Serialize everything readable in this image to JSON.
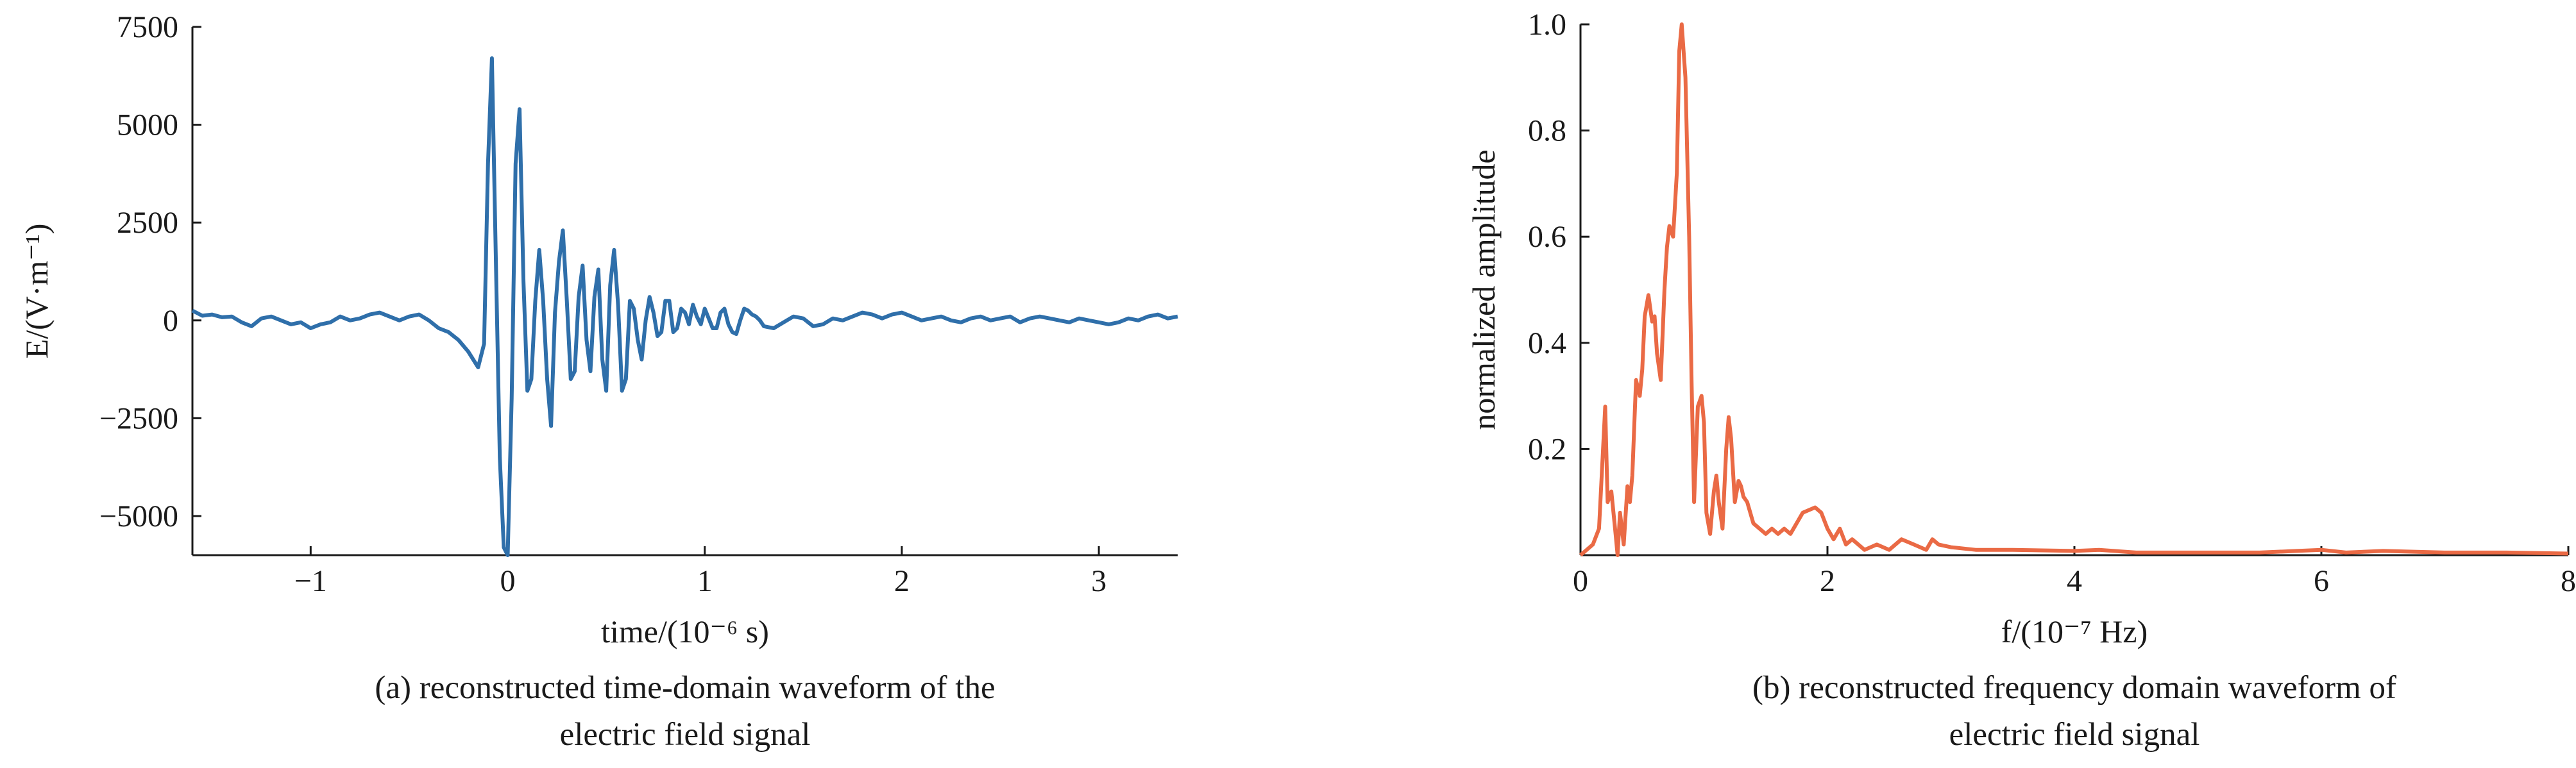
{
  "chart_data": [
    {
      "type": "line",
      "caption": [
        "(a) reconstructed time-domain waveform of the",
        "electric field signal"
      ],
      "xlabel": "time/(10⁻⁶ s)",
      "ylabel": "E/(V·m⁻¹)",
      "xlim": [
        -1.6,
        3.4
      ],
      "ylim": [
        -6000,
        7500
      ],
      "xticks": [
        -1,
        0,
        1,
        2,
        3
      ],
      "xtick_labels": [
        "−1",
        "0",
        "1",
        "2",
        "3"
      ],
      "yticks": [
        -5000,
        -2500,
        0,
        2500,
        5000,
        7500
      ],
      "ytick_labels": [
        "−5000",
        "−2500",
        "0",
        "2500",
        "5000",
        "7500"
      ],
      "grid": false,
      "color": "#2f6faa",
      "series": [
        {
          "x": [
            -1.6,
            -1.55,
            -1.5,
            -1.45,
            -1.4,
            -1.35,
            -1.3,
            -1.25,
            -1.2,
            -1.15,
            -1.1,
            -1.05,
            -1.0,
            -0.95,
            -0.9,
            -0.85,
            -0.8,
            -0.75,
            -0.7,
            -0.65,
            -0.6,
            -0.55,
            -0.5,
            -0.45,
            -0.4,
            -0.35,
            -0.3,
            -0.25,
            -0.2,
            -0.15,
            -0.12,
            -0.1,
            -0.08,
            -0.06,
            -0.04,
            -0.02,
            0.0,
            0.02,
            0.04,
            0.06,
            0.08,
            0.1,
            0.12,
            0.14,
            0.16,
            0.18,
            0.2,
            0.22,
            0.24,
            0.26,
            0.28,
            0.3,
            0.32,
            0.34,
            0.36,
            0.38,
            0.4,
            0.42,
            0.44,
            0.46,
            0.48,
            0.5,
            0.52,
            0.54,
            0.56,
            0.58,
            0.6,
            0.62,
            0.64,
            0.66,
            0.68,
            0.7,
            0.72,
            0.74,
            0.76,
            0.78,
            0.8,
            0.82,
            0.84,
            0.86,
            0.88,
            0.9,
            0.92,
            0.94,
            0.96,
            0.98,
            1.0,
            1.02,
            1.04,
            1.06,
            1.08,
            1.1,
            1.12,
            1.14,
            1.16,
            1.18,
            1.2,
            1.22,
            1.24,
            1.26,
            1.28,
            1.3,
            1.35,
            1.4,
            1.45,
            1.5,
            1.55,
            1.6,
            1.65,
            1.7,
            1.75,
            1.8,
            1.85,
            1.9,
            1.95,
            2.0,
            2.05,
            2.1,
            2.15,
            2.2,
            2.25,
            2.3,
            2.35,
            2.4,
            2.45,
            2.5,
            2.55,
            2.6,
            2.65,
            2.7,
            2.75,
            2.8,
            2.85,
            2.9,
            2.95,
            3.0,
            3.05,
            3.1,
            3.15,
            3.2,
            3.25,
            3.3,
            3.35,
            3.4
          ],
          "y": [
            250,
            120,
            150,
            80,
            100,
            -50,
            -150,
            50,
            100,
            0,
            -100,
            -50,
            -200,
            -100,
            -50,
            100,
            0,
            50,
            150,
            200,
            100,
            0,
            100,
            150,
            0,
            -200,
            -300,
            -500,
            -800,
            -1200,
            -600,
            4000,
            6700,
            1500,
            -3500,
            -5800,
            -6000,
            -2000,
            4000,
            5400,
            1000,
            -1800,
            -1500,
            500,
            1800,
            500,
            -1500,
            -2700,
            200,
            1500,
            2300,
            500,
            -1500,
            -1300,
            600,
            1400,
            -500,
            -1300,
            600,
            1300,
            -1000,
            -1800,
            900,
            1800,
            400,
            -1800,
            -1500,
            500,
            300,
            -500,
            -1000,
            0,
            600,
            200,
            -400,
            -300,
            500,
            500,
            -300,
            -200,
            300,
            200,
            -100,
            400,
            100,
            -100,
            300,
            50,
            -200,
            -200,
            200,
            300,
            -100,
            -300,
            -350,
            0,
            300,
            250,
            150,
            100,
            0,
            -150,
            -200,
            -50,
            100,
            50,
            -150,
            -100,
            50,
            0,
            100,
            200,
            150,
            50,
            150,
            200,
            100,
            0,
            50,
            100,
            0,
            -50,
            50,
            100,
            0,
            50,
            100,
            -50,
            50,
            100,
            50,
            0,
            -50,
            50,
            0,
            -50,
            -100,
            -50,
            50,
            0,
            100,
            150,
            50,
            100
          ]
        }
      ]
    },
    {
      "type": "line",
      "caption": [
        "(b) reconstructed frequency domain waveform of",
        "electric field signal"
      ],
      "xlabel": "f/(10⁻⁷ Hz)",
      "ylabel": "normalized amplitude",
      "xlim": [
        0,
        8
      ],
      "ylim": [
        0,
        1.0
      ],
      "xticks": [
        0,
        2,
        4,
        6,
        8
      ],
      "xtick_labels": [
        "0",
        "2",
        "4",
        "6",
        "8"
      ],
      "yticks": [
        0.2,
        0.4,
        0.6,
        0.8,
        1.0
      ],
      "ytick_labels": [
        "0.2",
        "0.4",
        "0.6",
        "0.8",
        "1.0"
      ],
      "grid": false,
      "color": "#ea6a45",
      "series": [
        {
          "x": [
            0.0,
            0.1,
            0.15,
            0.2,
            0.22,
            0.25,
            0.28,
            0.3,
            0.32,
            0.35,
            0.38,
            0.4,
            0.42,
            0.45,
            0.48,
            0.5,
            0.52,
            0.55,
            0.58,
            0.6,
            0.62,
            0.65,
            0.68,
            0.7,
            0.72,
            0.75,
            0.78,
            0.8,
            0.82,
            0.85,
            0.88,
            0.9,
            0.92,
            0.95,
            0.98,
            1.0,
            1.02,
            1.05,
            1.08,
            1.1,
            1.12,
            1.15,
            1.18,
            1.2,
            1.22,
            1.25,
            1.28,
            1.3,
            1.32,
            1.35,
            1.4,
            1.45,
            1.5,
            1.55,
            1.6,
            1.65,
            1.7,
            1.8,
            1.9,
            1.95,
            2.0,
            2.05,
            2.1,
            2.15,
            2.2,
            2.3,
            2.4,
            2.5,
            2.6,
            2.7,
            2.8,
            2.85,
            2.9,
            3.0,
            3.2,
            3.5,
            4.0,
            4.2,
            4.5,
            5.0,
            5.5,
            5.8,
            6.0,
            6.2,
            6.5,
            7.0,
            7.5,
            8.0
          ],
          "y": [
            0.0,
            0.02,
            0.05,
            0.28,
            0.1,
            0.12,
            0.05,
            0.0,
            0.08,
            0.02,
            0.13,
            0.1,
            0.15,
            0.33,
            0.3,
            0.35,
            0.45,
            0.49,
            0.44,
            0.45,
            0.38,
            0.33,
            0.5,
            0.58,
            0.62,
            0.6,
            0.72,
            0.95,
            1.0,
            0.9,
            0.6,
            0.32,
            0.1,
            0.28,
            0.3,
            0.25,
            0.08,
            0.04,
            0.12,
            0.15,
            0.1,
            0.05,
            0.2,
            0.26,
            0.22,
            0.1,
            0.14,
            0.13,
            0.11,
            0.1,
            0.06,
            0.05,
            0.04,
            0.05,
            0.04,
            0.05,
            0.04,
            0.08,
            0.09,
            0.08,
            0.05,
            0.03,
            0.05,
            0.02,
            0.03,
            0.01,
            0.02,
            0.01,
            0.03,
            0.02,
            0.01,
            0.03,
            0.02,
            0.015,
            0.01,
            0.01,
            0.008,
            0.01,
            0.005,
            0.005,
            0.005,
            0.008,
            0.01,
            0.005,
            0.008,
            0.005,
            0.005,
            0.003
          ]
        }
      ]
    }
  ]
}
